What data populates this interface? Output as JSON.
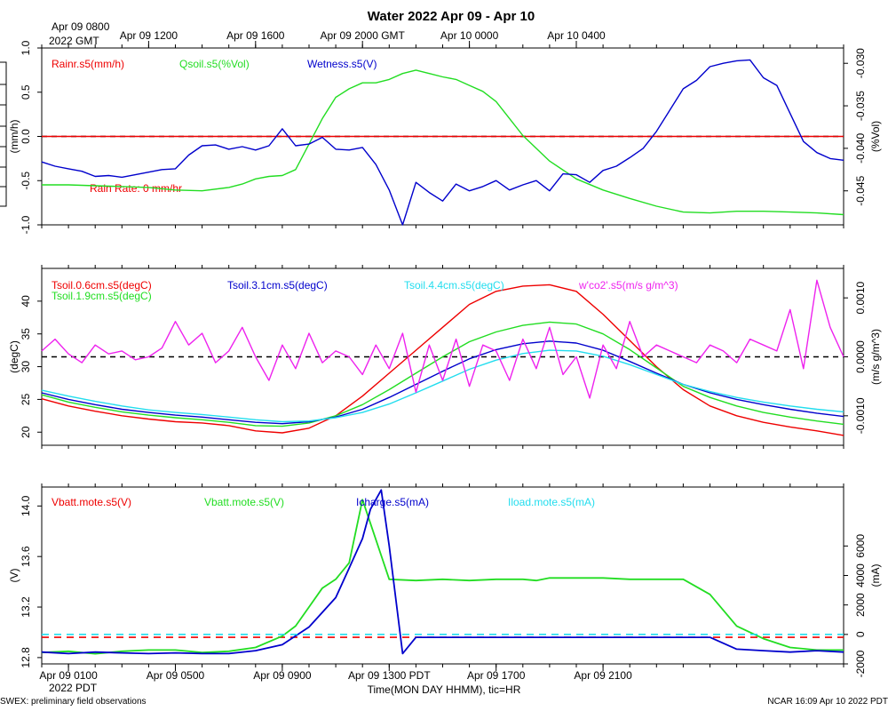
{
  "page": {
    "title": "Water 2022 Apr 09 - Apr 10",
    "top_left_1": "Apr 09 0800",
    "top_left_2": "2022 GMT",
    "bottom_left_tz": "2022 PDT",
    "x_axis_label": "Time(MON DAY HHMM), tic=HR",
    "footer_left": "SWEX: preliminary field observations",
    "footer_right": "NCAR 16:09 Apr 10 2022 PDT"
  },
  "colors": {
    "red": "#ee0000",
    "green": "#22dd22",
    "blue": "#0000cc",
    "cyan": "#22ddee",
    "magenta": "#ee22ee",
    "black": "#000000"
  },
  "chart_data": [
    {
      "type": "line",
      "panel": "top",
      "x_range_hours": [
        0,
        30
      ],
      "top_ticks": [
        "Apr 09 1200",
        "Apr 09 1600",
        "Apr 09 2000 GMT",
        "Apr 10 0000",
        "Apr 10 0400"
      ],
      "top_tick_hours": [
        4,
        8,
        12,
        16,
        20
      ],
      "ylabel_left": "(mm/h)",
      "ylabel_right": "(%Vol)",
      "ylim_left": [
        -1.0,
        1.0
      ],
      "ylim_right": [
        -0.049,
        -0.0282
      ],
      "left_ticks": [
        "-1.0",
        "-0.5",
        "0.0",
        "0.5",
        "1.0"
      ],
      "right_ticks": [
        "-0.045",
        "-0.040",
        "-0.035",
        "-0.030"
      ],
      "annotation": "Rain Rate: 0 mm/hr",
      "legend": [
        "Rainr.s5(mm/h)",
        "Qsoil.s5(%Vol)",
        "Wetness.s5(V)"
      ],
      "series": [
        {
          "name": "Rainr.s5(mm/h)",
          "color": "red",
          "axis": "left",
          "x": [
            0,
            30
          ],
          "values": [
            0,
            0
          ]
        },
        {
          "name": "Qsoil.s5(%Vol)",
          "color": "green",
          "axis": "right",
          "x": [
            0,
            1,
            2,
            3,
            4,
            5,
            6,
            7,
            7.5,
            8,
            8.5,
            9,
            9.5,
            10,
            10.5,
            11,
            11.5,
            12,
            12.5,
            13,
            13.5,
            14,
            14.5,
            15,
            15.5,
            16,
            16.5,
            17,
            17.5,
            18,
            19,
            20,
            21,
            22,
            23,
            24,
            25,
            26,
            27,
            28,
            29,
            30
          ],
          "values": [
            -0.0443,
            -0.0443,
            -0.0444,
            -0.0445,
            -0.0446,
            -0.0449,
            -0.045,
            -0.0446,
            -0.0442,
            -0.0436,
            -0.0433,
            -0.0432,
            -0.0425,
            -0.0395,
            -0.0365,
            -0.034,
            -0.033,
            -0.0323,
            -0.0323,
            -0.0319,
            -0.0312,
            -0.0308,
            -0.0312,
            -0.0316,
            -0.0319,
            -0.0326,
            -0.0333,
            -0.0345,
            -0.0365,
            -0.0385,
            -0.0415,
            -0.0436,
            -0.0449,
            -0.0459,
            -0.0468,
            -0.0475,
            -0.0476,
            -0.0474,
            -0.0474,
            -0.0475,
            -0.0476,
            -0.0478
          ]
        },
        {
          "name": "Wetness.s5(V)",
          "color": "blue",
          "axis": "right",
          "x": [
            0,
            0.5,
            1,
            1.5,
            2,
            2.5,
            3,
            3.5,
            4,
            4.5,
            5,
            5.5,
            6,
            6.5,
            7,
            7.5,
            8,
            8.5,
            9,
            9.5,
            10,
            10.5,
            11,
            11.5,
            12,
            12.5,
            13,
            13.5,
            14,
            14.5,
            15,
            15.5,
            16,
            16.5,
            17,
            17.5,
            18,
            18.5,
            19,
            19.5,
            20,
            20.5,
            21,
            21.5,
            22,
            22.5,
            23,
            23.5,
            24,
            24.5,
            25,
            25.5,
            26,
            26.5,
            27,
            27.5,
            28,
            28.5,
            29,
            29.5,
            30
          ],
          "values": [
            -0.0416,
            -0.0421,
            -0.0424,
            -0.0427,
            -0.0433,
            -0.0432,
            -0.0434,
            -0.0431,
            -0.0428,
            -0.0425,
            -0.0424,
            -0.0408,
            -0.0397,
            -0.0396,
            -0.0401,
            -0.0398,
            -0.0402,
            -0.0397,
            -0.0377,
            -0.0397,
            -0.0395,
            -0.0387,
            -0.0401,
            -0.0402,
            -0.0399,
            -0.0419,
            -0.0449,
            -0.049,
            -0.044,
            -0.0452,
            -0.0462,
            -0.0442,
            -0.045,
            -0.0445,
            -0.0438,
            -0.0449,
            -0.0443,
            -0.0438,
            -0.045,
            -0.043,
            -0.0431,
            -0.044,
            -0.0426,
            -0.0421,
            -0.0411,
            -0.04,
            -0.038,
            -0.0355,
            -0.033,
            -0.032,
            -0.0304,
            -0.03,
            -0.0297,
            -0.0296,
            -0.0317,
            -0.0326,
            -0.0359,
            -0.0392,
            -0.0405,
            -0.0412,
            -0.0414
          ]
        }
      ]
    },
    {
      "type": "line",
      "panel": "middle",
      "x_range_hours": [
        0,
        30
      ],
      "ylabel_left": "(degC)",
      "ylabel_right": "(m/s g/m^3)",
      "ylim_left": [
        18,
        45
      ],
      "ylim_right": [
        -0.0015,
        0.0015
      ],
      "left_ticks": [
        "20",
        "25",
        "30",
        "35",
        "40"
      ],
      "right_ticks": [
        "-0.0010",
        "0.0000",
        "0.0010"
      ],
      "legend": [
        "Tsoil.0.6cm.s5(degC)",
        "Tsoil.1.9cm.s5(degC)",
        "Tsoil.3.1cm.s5(degC)",
        "Tsoil.4.4cm.s5(degC)",
        "w'co2'.s5(m/s g/m^3)"
      ],
      "series": [
        {
          "name": "Tsoil.0.6cm.s5(degC)",
          "color": "red",
          "axis": "left",
          "x": [
            0,
            1,
            2,
            3,
            4,
            5,
            6,
            7,
            8,
            9,
            10,
            11,
            12,
            13,
            14,
            15,
            16,
            17,
            18,
            19,
            20,
            21,
            22,
            23,
            24,
            25,
            26,
            27,
            28,
            29,
            30
          ],
          "values": [
            25.1,
            24.0,
            23.2,
            22.5,
            22.0,
            21.6,
            21.4,
            21.0,
            20.2,
            19.9,
            20.6,
            22.5,
            25.5,
            29.0,
            32.5,
            36.0,
            39.5,
            41.5,
            42.3,
            42.5,
            41.5,
            38.0,
            34.0,
            30.0,
            26.5,
            24.0,
            22.5,
            21.5,
            20.8,
            20.2,
            19.5
          ]
        },
        {
          "name": "Tsoil.1.9cm.s5(degC)",
          "color": "green",
          "axis": "left",
          "x": [
            0,
            1,
            2,
            3,
            4,
            5,
            6,
            7,
            8,
            9,
            10,
            11,
            12,
            13,
            14,
            15,
            16,
            17,
            18,
            19,
            20,
            21,
            22,
            23,
            24,
            25,
            26,
            27,
            28,
            29,
            30
          ],
          "values": [
            25.7,
            24.6,
            23.8,
            23.1,
            22.6,
            22.2,
            21.9,
            21.5,
            21.0,
            20.9,
            21.4,
            22.5,
            24.2,
            26.5,
            29.0,
            31.5,
            33.8,
            35.3,
            36.3,
            36.8,
            36.5,
            35.0,
            32.6,
            29.8,
            27.0,
            25.3,
            24.0,
            23.0,
            22.3,
            21.7,
            21.2
          ]
        },
        {
          "name": "Tsoil.3.1cm.s5(degC)",
          "color": "blue",
          "axis": "left",
          "x": [
            0,
            1,
            2,
            3,
            4,
            5,
            6,
            7,
            8,
            9,
            10,
            11,
            12,
            13,
            14,
            15,
            16,
            17,
            18,
            19,
            20,
            21,
            22,
            23,
            24,
            25,
            26,
            27,
            28,
            29,
            30
          ],
          "values": [
            26.0,
            25.0,
            24.2,
            23.5,
            23.0,
            22.6,
            22.3,
            21.9,
            21.5,
            21.3,
            21.6,
            22.3,
            23.5,
            25.3,
            27.3,
            29.3,
            31.2,
            32.6,
            33.5,
            33.9,
            33.6,
            32.5,
            30.8,
            29.0,
            27.3,
            26.0,
            25.0,
            24.2,
            23.5,
            22.9,
            22.4
          ]
        },
        {
          "name": "Tsoil.4.4cm.s5(degC)",
          "color": "cyan",
          "axis": "left",
          "x": [
            0,
            1,
            2,
            3,
            4,
            5,
            6,
            7,
            8,
            9,
            10,
            11,
            12,
            13,
            14,
            15,
            16,
            17,
            18,
            19,
            20,
            21,
            22,
            23,
            24,
            25,
            26,
            27,
            28,
            29,
            30
          ],
          "values": [
            26.4,
            25.5,
            24.7,
            24.0,
            23.4,
            23.0,
            22.7,
            22.3,
            21.9,
            21.6,
            21.7,
            22.2,
            23.0,
            24.3,
            26.0,
            27.8,
            29.6,
            31.0,
            32.0,
            32.5,
            32.4,
            31.6,
            30.3,
            28.8,
            27.3,
            26.2,
            25.3,
            24.6,
            24.0,
            23.5,
            23.1
          ]
        },
        {
          "name": "w'co2'.s5(m/s g/m^3)",
          "color": "magenta",
          "axis": "right",
          "x": [
            0,
            0.5,
            1,
            1.5,
            2,
            2.5,
            3,
            3.5,
            4,
            4.5,
            5,
            5.5,
            6,
            6.5,
            7,
            7.5,
            8,
            8.5,
            9,
            9.5,
            10,
            10.5,
            11,
            11.5,
            12,
            12.5,
            13,
            13.5,
            14,
            14.5,
            15,
            15.5,
            16,
            16.5,
            17,
            17.5,
            18,
            18.5,
            19,
            19.5,
            20,
            20.5,
            21,
            21.5,
            22,
            22.5,
            23,
            23.5,
            24,
            24.5,
            25,
            25.5,
            26,
            26.5,
            27,
            27.5,
            28,
            28.5,
            29,
            29.5,
            30
          ],
          "values": [
            0.0001,
            0.0003,
            5e-05,
            -0.0001,
            0.0002,
            5e-05,
            0.0001,
            -5e-05,
            0.0,
            0.00015,
            0.0006,
            0.0002,
            0.0004,
            -0.0001,
            0.0001,
            0.0005,
            0.0,
            -0.0004,
            0.0002,
            -0.0002,
            0.0004,
            -0.0001,
            0.0001,
            0.0,
            -0.0003,
            0.0002,
            -0.0002,
            0.0004,
            -0.0006,
            0.0002,
            -0.0004,
            0.0003,
            -0.0005,
            0.0002,
            0.0001,
            -0.0004,
            0.0003,
            -0.0002,
            0.0005,
            -0.0003,
            0.0,
            -0.0007,
            0.0002,
            -0.0002,
            0.0006,
            0.0,
            0.0002,
            0.0001,
            0.0,
            -0.0001,
            0.0002,
            0.0001,
            -0.0001,
            0.0003,
            0.0002,
            0.0001,
            0.0008,
            -0.0002,
            0.0013,
            0.0005,
            0.0
          ]
        }
      ]
    },
    {
      "type": "line",
      "panel": "bottom",
      "x_range_hours": [
        0,
        30
      ],
      "bottom_ticks": [
        "Apr 09 0100",
        "Apr 09 0500",
        "Apr 09 0900",
        "Apr 09 1300 PDT",
        "Apr 09 1700",
        "Apr 09 2100"
      ],
      "bottom_tick_hours": [
        1,
        5,
        9,
        13,
        17,
        21
      ],
      "ylabel_left": "(V)",
      "ylabel_right": "(mA)",
      "ylim_left": [
        12.75,
        14.15
      ],
      "ylim_right": [
        -2000,
        10000
      ],
      "left_ticks": [
        "12.8",
        "13.2",
        "13.6",
        "14.0"
      ],
      "right_ticks": [
        "-2000",
        "0",
        "2000",
        "4000",
        "6000"
      ],
      "legend": [
        "Vbatt.mote.s5(V)",
        "Vbatt.mote.s5(V)",
        "Icharge.s5(mA)",
        "Iload.mote.s5(mA)"
      ],
      "series": [
        {
          "name": "Vbatt.mote.s5(V)",
          "color": "red",
          "axis": "left",
          "x": [
            0,
            30
          ],
          "values": [
            12.96,
            12.96
          ]
        },
        {
          "name": "Vbatt.mote.s5(V) (green)",
          "color": "green",
          "axis": "left",
          "x": [
            0,
            1,
            2,
            3,
            4,
            5,
            6,
            7,
            8,
            9,
            9.5,
            10,
            10.5,
            11,
            11.5,
            12,
            13,
            14,
            15,
            16,
            17,
            18,
            18.5,
            19,
            19.5,
            20,
            21,
            22,
            23,
            24,
            25,
            26,
            27,
            28,
            29,
            30
          ],
          "values": [
            12.84,
            12.85,
            12.83,
            12.85,
            12.86,
            12.86,
            12.84,
            12.85,
            12.88,
            12.97,
            13.05,
            13.2,
            13.35,
            13.42,
            13.55,
            14.05,
            13.42,
            13.41,
            13.42,
            13.41,
            13.42,
            13.42,
            13.41,
            13.43,
            13.43,
            13.43,
            13.43,
            13.42,
            13.42,
            13.42,
            13.3,
            13.05,
            12.95,
            12.88,
            12.86,
            12.86
          ]
        },
        {
          "name": "Icharge.s5(mA)",
          "color": "blue",
          "axis": "right",
          "x": [
            0,
            1,
            2,
            3,
            4,
            5,
            6,
            7,
            8,
            9,
            10,
            10.5,
            11,
            11.5,
            12,
            12.3,
            12.7,
            13,
            13.5,
            14,
            15,
            16,
            17,
            18,
            19,
            20,
            21,
            22,
            23,
            24,
            25,
            26,
            27,
            28,
            29,
            30
          ],
          "values": [
            -1200,
            -1300,
            -1200,
            -1250,
            -1300,
            -1250,
            -1300,
            -1300,
            -1100,
            -700,
            500,
            1500,
            2500,
            4500,
            6500,
            8500,
            9800,
            6000,
            -1300,
            -200,
            -200,
            -200,
            -200,
            -200,
            -200,
            -200,
            -200,
            -200,
            -200,
            -200,
            -200,
            -1000,
            -1100,
            -1200,
            -1100,
            -1200
          ]
        },
        {
          "name": "Iload.mote.s5(mA)",
          "color": "cyan",
          "axis": "right",
          "x": [
            0,
            30
          ],
          "values": [
            0,
            0
          ]
        }
      ]
    }
  ]
}
